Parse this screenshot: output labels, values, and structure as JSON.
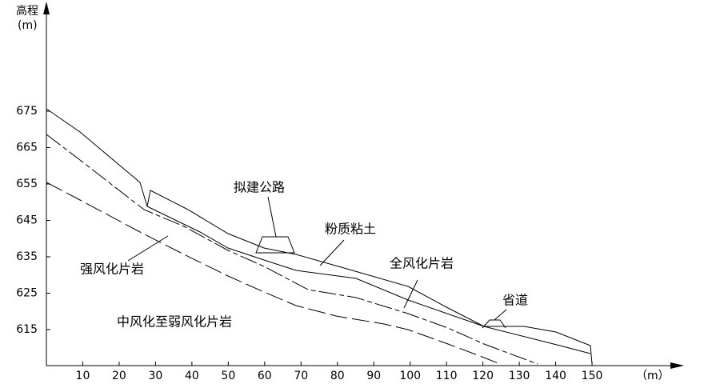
{
  "axes": {
    "y_label": "高程",
    "y_unit": "(m)",
    "x_unit": "（m）",
    "xticks": [
      10,
      20,
      30,
      40,
      50,
      60,
      70,
      80,
      90,
      100,
      110,
      120,
      130,
      140,
      150
    ],
    "yticks": [
      615,
      625,
      635,
      645,
      655,
      665,
      675
    ]
  },
  "labels": {
    "road_planned": "拟建公路",
    "silty_clay": "粉质粘土",
    "fully_weathered": "全风化片岩",
    "strongly_weathered": "强风化片岩",
    "moderately_weathered": "中风化至弱风化片岩",
    "provincial_road": "省道"
  }
}
